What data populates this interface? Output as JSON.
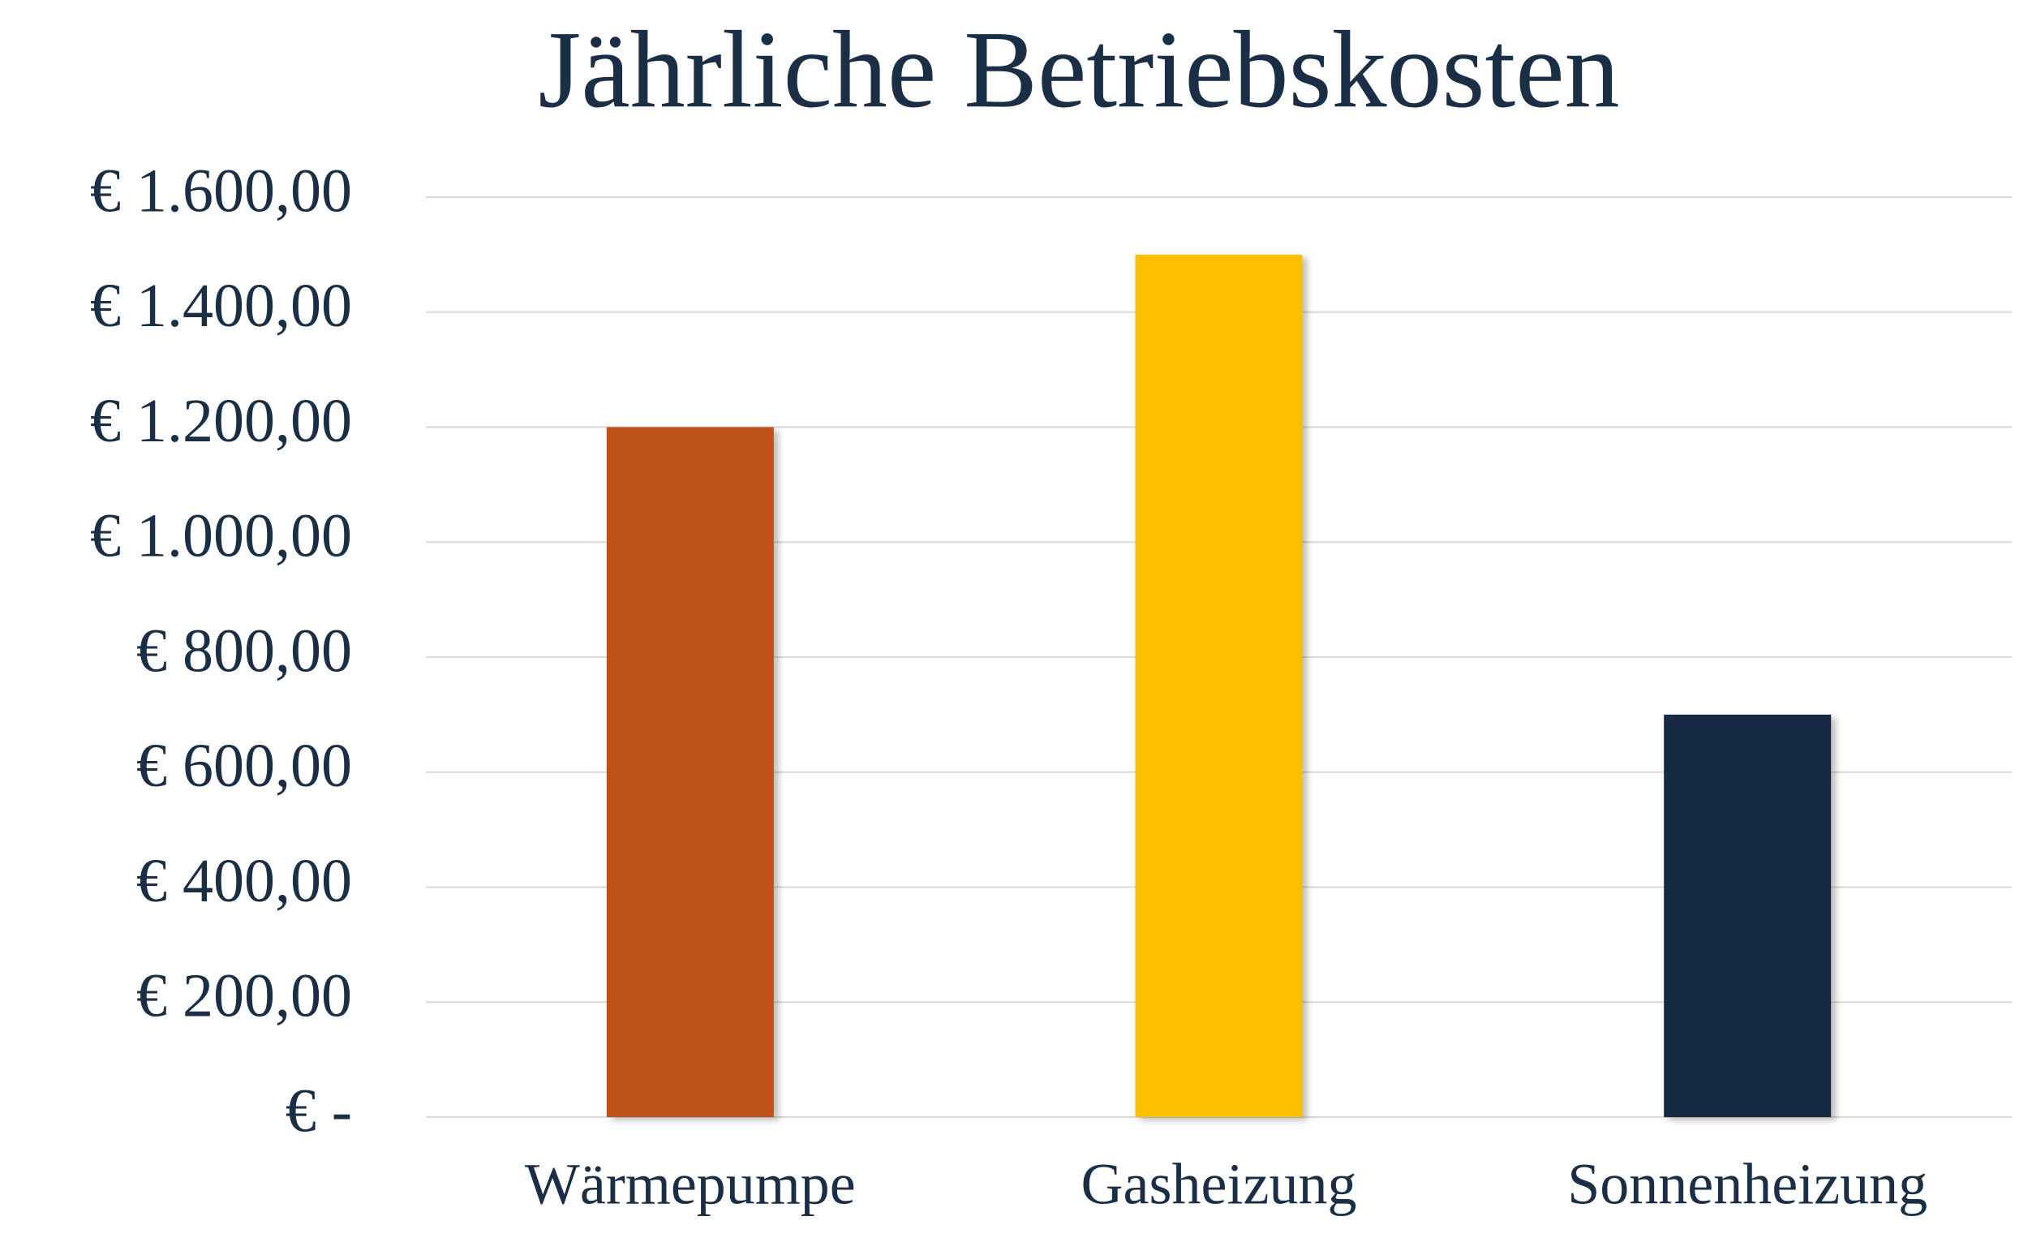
{
  "chart_data": {
    "type": "bar",
    "title": "Jährliche Betriebskosten",
    "categories": [
      "Wärmepumpe",
      "Gasheizung",
      "Sonnenheizung"
    ],
    "values": [
      1200,
      1500,
      700
    ],
    "colors": [
      "#be5118",
      "#ffc000",
      "#182c45"
    ],
    "ylim": [
      0,
      1600
    ],
    "yticks": [
      {
        "value": 0,
        "label": "€ -"
      },
      {
        "value": 200,
        "label": "€ 200,00"
      },
      {
        "value": 400,
        "label": "€ 400,00"
      },
      {
        "value": 600,
        "label": "€ 600,00"
      },
      {
        "value": 800,
        "label": "€ 800,00"
      },
      {
        "value": 1000,
        "label": "€ 1.000,00"
      },
      {
        "value": 1200,
        "label": "€ 1.200,00"
      },
      {
        "value": 1400,
        "label": "€ 1.400,00"
      },
      {
        "value": 1600,
        "label": "€ 1.600,00"
      }
    ],
    "grid": true
  }
}
